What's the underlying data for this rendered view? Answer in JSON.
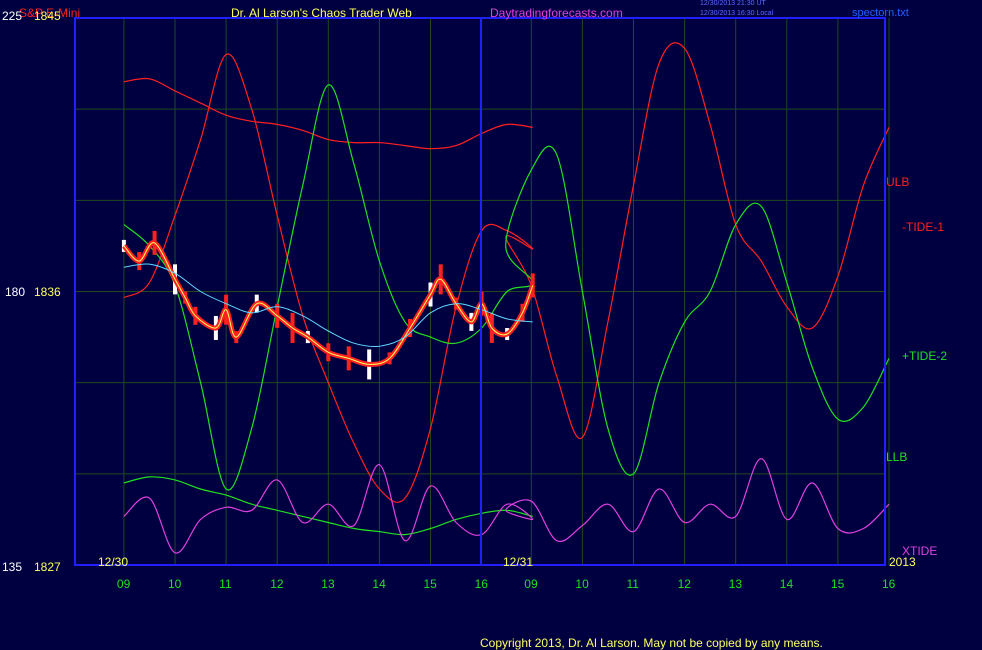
{
  "header": {
    "instrument": "S&P E-Mini",
    "author": "Dr. Al Larson's Chaos Trader Web",
    "site": "Daytradingforecasts.com",
    "timestamp_line1": "12/30/2013 21:30 UT",
    "timestamp_line2": "12/30/2013 16:30 Local",
    "file": "spectorn.txt"
  },
  "axis": {
    "left_scale_top": "225",
    "left_price_top": "1845",
    "left_scale_mid": "180",
    "left_price_mid": "1836",
    "left_scale_bottom": "135",
    "left_price_bottom": "1827"
  },
  "date_labels": {
    "day1": "12/30",
    "day2": "12/31",
    "year": "2013"
  },
  "hours_day1": [
    "09",
    "10",
    "11",
    "12",
    "13",
    "14",
    "15",
    "16"
  ],
  "hours_day2": [
    "09",
    "10",
    "11",
    "12",
    "13",
    "14",
    "15",
    "16"
  ],
  "legend": {
    "ulb": "ULB",
    "tide1": "-TIDE-1",
    "tide2": "+TIDE-2",
    "llb": "LLB",
    "xtide": "XTIDE"
  },
  "footer": {
    "copyright": "Copyright 2013, Dr. Al Larson. May not be copied by any means."
  },
  "colors": {
    "background": "#000040",
    "frame": "#2020ff",
    "grid": "#1e4a1e",
    "red": "#ff2020",
    "green": "#20e020",
    "magenta": "#e040e0",
    "yellow": "#ffff60",
    "cyan": "#60d8ff",
    "white": "#ffffff"
  },
  "chart_data": {
    "type": "line",
    "x_unit": "hours since 12/30 08:00 (second day starts at 9)",
    "ylim_price": [
      1827,
      1845
    ],
    "ylim_scale": [
      135,
      225
    ],
    "series": [
      {
        "name": "ULB",
        "x": [
          0,
          0.5,
          1,
          1.5,
          2,
          2.5,
          3,
          3.5,
          4,
          4.5,
          5,
          5.5,
          6,
          6.5,
          7,
          7.5,
          8
        ],
        "y": [
          1842.9,
          1843.0,
          1842.6,
          1842.2,
          1841.8,
          1841.6,
          1841.5,
          1841.3,
          1841.0,
          1840.9,
          1840.9,
          1840.8,
          1840.7,
          1840.8,
          1841.2,
          1841.5,
          1841.4
        ]
      },
      {
        "name": "LLB",
        "x": [
          0,
          0.5,
          1,
          1.5,
          2,
          2.5,
          3,
          3.5,
          4,
          4.5,
          5,
          5.5,
          6,
          6.5,
          7,
          7.5,
          8
        ],
        "y": [
          1829.7,
          1829.9,
          1829.8,
          1829.5,
          1829.3,
          1829.0,
          1828.8,
          1828.6,
          1828.4,
          1828.2,
          1828.1,
          1828.0,
          1828.2,
          1828.5,
          1828.7,
          1828.8,
          1828.6
        ]
      },
      {
        "name": "-TIDE-1",
        "x": [
          0,
          0.5,
          1,
          1.5,
          2,
          2.5,
          3,
          3.5,
          4,
          4.5,
          5,
          5.5,
          6,
          6.5,
          7,
          7.5,
          8,
          8.5,
          9,
          9.5,
          10,
          10.5,
          11,
          11.5,
          12,
          12.5,
          13,
          13.5,
          14,
          14.5,
          15,
          15.5,
          16
        ],
        "y": [
          1835.8,
          1836.3,
          1838.5,
          1841.0,
          1843.8,
          1842.0,
          1838.5,
          1835.2,
          1833.0,
          1831.0,
          1829.5,
          1829.2,
          1831.5,
          1835.5,
          1838.0,
          1838.0,
          1837.4,
          1837.8,
          1836.2,
          1833.2,
          1831.2,
          1835.0,
          1839.5,
          1843.5,
          1844.0,
          1841.5,
          1838.2,
          1837.0,
          1835.5,
          1834.8,
          1836.5,
          1839.5,
          1841.4
        ]
      },
      {
        "name": "+TIDE-2",
        "x": [
          0,
          0.5,
          1,
          1.5,
          2,
          2.5,
          3,
          3.5,
          4,
          4.5,
          5,
          5.5,
          6,
          6.5,
          7,
          7.5,
          8,
          8.5,
          9,
          9.5,
          10,
          10.5,
          11,
          11.5,
          12,
          12.5,
          13,
          13.5,
          14,
          14.5,
          15,
          15.5,
          16
        ],
        "y": [
          1838.2,
          1837.5,
          1836.2,
          1833.0,
          1829.5,
          1831.5,
          1835.5,
          1839.5,
          1842.8,
          1840.2,
          1837.0,
          1835.0,
          1834.5,
          1834.3,
          1834.8,
          1836.0,
          1836.3,
          1837.5,
          1840.0,
          1840.5,
          1836.0,
          1831.5,
          1830.0,
          1833.0,
          1835.0,
          1836.0,
          1838.2,
          1838.8,
          1836.3,
          1833.5,
          1831.8,
          1832.2,
          1833.8
        ]
      },
      {
        "name": "XTIDE",
        "x": [
          0,
          0.5,
          1,
          1.5,
          2,
          2.5,
          3,
          3.5,
          4,
          4.5,
          5,
          5.5,
          6,
          6.5,
          7,
          7.5,
          8,
          8.5,
          9,
          9.5,
          10,
          10.5,
          11,
          11.5,
          12,
          12.5,
          13,
          13.5,
          14,
          14.5,
          15,
          15.5,
          16
        ],
        "y": [
          1828.6,
          1829.2,
          1827.4,
          1828.5,
          1828.9,
          1828.8,
          1829.8,
          1828.4,
          1829.0,
          1828.3,
          1830.3,
          1827.8,
          1829.6,
          1828.4,
          1828.0,
          1829.0,
          1828.5,
          1828.8,
          1829.1,
          1827.8,
          1828.3,
          1829.0,
          1828.1,
          1829.5,
          1828.4,
          1829.0,
          1828.6,
          1830.5,
          1828.5,
          1829.7,
          1828.2,
          1828.2,
          1829.0
        ]
      },
      {
        "name": "Price",
        "x": [
          0,
          0.3,
          0.6,
          1,
          1.2,
          1.4,
          1.8,
          2,
          2.2,
          2.6,
          3,
          3.3,
          3.6,
          4,
          4.4,
          4.8,
          5.2,
          5.6,
          6,
          6.2,
          6.5,
          6.8,
          7,
          7.2,
          7.5,
          7.8,
          8
        ],
        "y": [
          1837.5,
          1837.0,
          1837.6,
          1836.4,
          1835.8,
          1835.2,
          1834.8,
          1835.4,
          1834.5,
          1835.6,
          1835.2,
          1834.8,
          1834.5,
          1834.0,
          1833.8,
          1833.6,
          1833.8,
          1834.8,
          1835.9,
          1836.4,
          1835.6,
          1835.0,
          1835.6,
          1834.8,
          1834.6,
          1835.3,
          1836.2
        ]
      },
      {
        "name": "Average",
        "x": [
          0,
          0.5,
          1,
          1.5,
          2,
          2.5,
          3,
          3.5,
          4,
          4.5,
          5,
          5.5,
          6,
          6.5,
          7,
          7.5,
          8
        ],
        "y": [
          1836.8,
          1836.9,
          1836.6,
          1836.0,
          1835.6,
          1835.3,
          1835.5,
          1835.2,
          1834.7,
          1834.3,
          1834.2,
          1834.5,
          1835.3,
          1835.6,
          1835.4,
          1835.1,
          1835.0
        ]
      }
    ]
  }
}
